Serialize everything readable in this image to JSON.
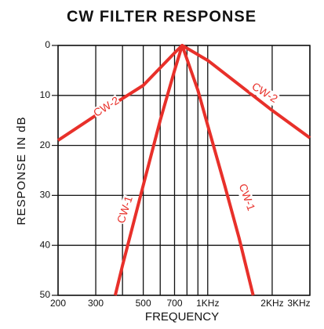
{
  "chart_data": {
    "type": "line",
    "title": "CW FILTER RESPONSE",
    "x_label": "FREQUENCY",
    "y_label": "RESPONSE IN dB",
    "x_log": true,
    "y_reversed": true,
    "grid": true,
    "xlim": [
      200,
      3000
    ],
    "ylim": [
      0,
      50
    ],
    "xticks": [
      {
        "value": 200,
        "label": "200"
      },
      {
        "value": 300,
        "label": "300"
      },
      {
        "value": 400,
        "label": null
      },
      {
        "value": 500,
        "label": "500"
      },
      {
        "value": 600,
        "label": null
      },
      {
        "value": 700,
        "label": "700"
      },
      {
        "value": 800,
        "label": null
      },
      {
        "value": 900,
        "label": null
      },
      {
        "value": 1000,
        "label": "1KHz"
      },
      {
        "value": 2000,
        "label": "2KHz"
      },
      {
        "value": 3000,
        "label": "3KHz"
      }
    ],
    "yticks": [
      0,
      10,
      20,
      30,
      40,
      50
    ],
    "series": [
      {
        "name": "CW-2",
        "color": "#e8302a",
        "x": [
          200,
          300,
          500,
          700,
          760,
          1000,
          2000,
          3000
        ],
        "values": [
          19,
          14,
          8,
          1.5,
          0,
          3,
          13,
          18.5
        ]
      },
      {
        "name": "CW-1",
        "color": "#e8302a",
        "x": [
          370,
          400,
          500,
          600,
          700,
          760,
          900,
          1000,
          1200,
          1400,
          1630
        ],
        "values": [
          50,
          44,
          28,
          15,
          5,
          0,
          9,
          16,
          28,
          38.5,
          50
        ]
      }
    ]
  }
}
